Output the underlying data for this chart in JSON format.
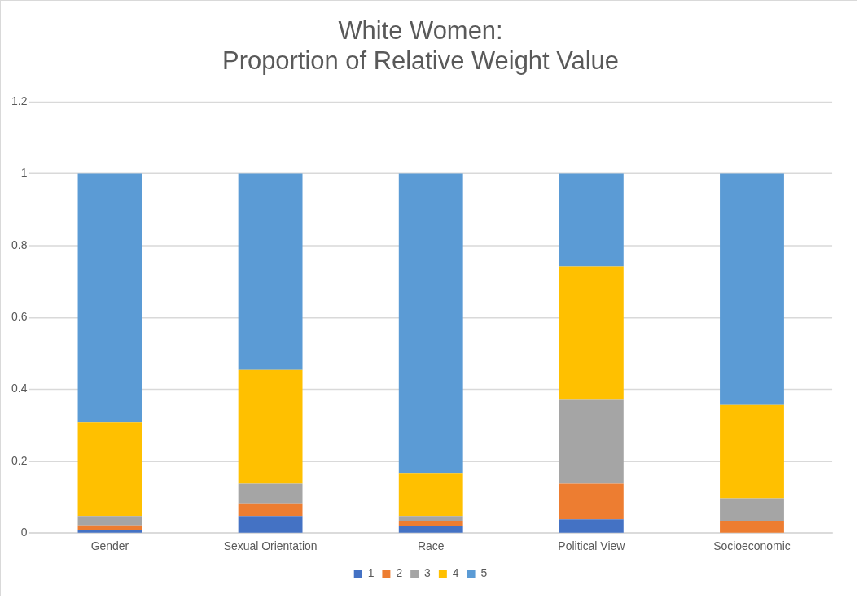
{
  "chart_data": {
    "type": "bar",
    "stacked": true,
    "title": [
      "White Women:",
      "Proportion of Relative Weight Value"
    ],
    "categories": [
      "Gender",
      "Sexual Orientation",
      "Race",
      "Political View",
      "Socioeconomic"
    ],
    "series": [
      {
        "name": "1",
        "color": "#4472c4",
        "values": [
          0.008,
          0.048,
          0.021,
          0.039,
          0
        ]
      },
      {
        "name": "2",
        "color": "#ed7d31",
        "values": [
          0.014,
          0.035,
          0.014,
          0.099,
          0.035
        ]
      },
      {
        "name": "3",
        "color": "#a5a5a5",
        "values": [
          0.026,
          0.055,
          0.013,
          0.233,
          0.062
        ]
      },
      {
        "name": "4",
        "color": "#ffc000",
        "values": [
          0.26,
          0.316,
          0.12,
          0.371,
          0.26
        ]
      },
      {
        "name": "5",
        "color": "#5b9bd5",
        "values": [
          0.692,
          0.546,
          0.832,
          0.258,
          0.643
        ]
      }
    ],
    "ylim": [
      0,
      1.2
    ],
    "yticks": [
      0,
      0.2,
      0.4,
      0.6,
      0.8,
      1,
      1.2
    ],
    "grid": "y",
    "legend": "bottom"
  }
}
